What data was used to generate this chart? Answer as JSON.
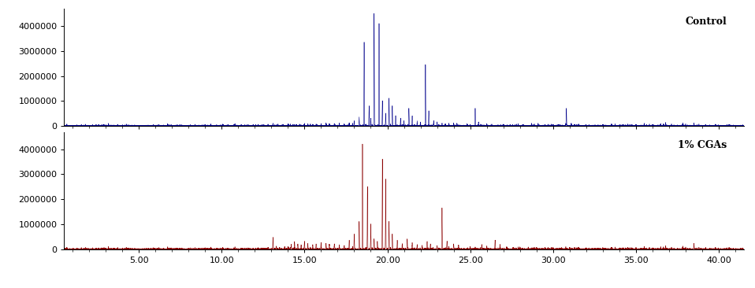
{
  "title_top": "Control",
  "title_bottom": "1% CGAs",
  "color_top": "#00008B",
  "color_bottom": "#8B0000",
  "xlim": [
    0.5,
    41.5
  ],
  "ylim": [
    0,
    4700000
  ],
  "yticks": [
    0,
    1000000,
    2000000,
    3000000,
    4000000
  ],
  "xticks": [
    5.0,
    10.0,
    15.0,
    20.0,
    25.0,
    30.0,
    35.0,
    40.0
  ],
  "background": "#ffffff",
  "figsize": [
    9.58,
    3.66
  ],
  "dpi": 100,
  "peaks_top": [
    [
      3.5,
      20000
    ],
    [
      4.5,
      15000
    ],
    [
      6.2,
      25000
    ],
    [
      6.8,
      30000
    ],
    [
      7.5,
      35000
    ],
    [
      8.0,
      20000
    ],
    [
      8.4,
      25000
    ],
    [
      9.0,
      40000
    ],
    [
      9.3,
      25000
    ],
    [
      9.7,
      30000
    ],
    [
      10.1,
      35000
    ],
    [
      10.4,
      25000
    ],
    [
      10.8,
      40000
    ],
    [
      11.2,
      30000
    ],
    [
      11.6,
      45000
    ],
    [
      11.9,
      35000
    ],
    [
      12.2,
      55000
    ],
    [
      12.5,
      40000
    ],
    [
      12.8,
      60000
    ],
    [
      13.1,
      80000
    ],
    [
      13.4,
      60000
    ],
    [
      13.7,
      50000
    ],
    [
      14.0,
      75000
    ],
    [
      14.3,
      55000
    ],
    [
      14.5,
      45000
    ],
    [
      14.7,
      60000
    ],
    [
      15.0,
      90000
    ],
    [
      15.2,
      70000
    ],
    [
      15.5,
      55000
    ],
    [
      15.7,
      65000
    ],
    [
      16.0,
      80000
    ],
    [
      16.3,
      100000
    ],
    [
      16.5,
      70000
    ],
    [
      16.8,
      85000
    ],
    [
      17.1,
      95000
    ],
    [
      17.4,
      75000
    ],
    [
      17.7,
      110000
    ],
    [
      18.0,
      200000
    ],
    [
      18.3,
      350000
    ],
    [
      18.6,
      3350000
    ],
    [
      18.9,
      800000
    ],
    [
      19.0,
      300000
    ],
    [
      19.2,
      4500000
    ],
    [
      19.5,
      4100000
    ],
    [
      19.7,
      1000000
    ],
    [
      19.9,
      500000
    ],
    [
      20.1,
      1100000
    ],
    [
      20.3,
      800000
    ],
    [
      20.5,
      400000
    ],
    [
      20.8,
      300000
    ],
    [
      21.0,
      200000
    ],
    [
      21.3,
      700000
    ],
    [
      21.5,
      400000
    ],
    [
      21.8,
      200000
    ],
    [
      22.0,
      150000
    ],
    [
      22.3,
      2450000
    ],
    [
      22.5,
      600000
    ],
    [
      22.8,
      200000
    ],
    [
      23.0,
      150000
    ],
    [
      23.3,
      100000
    ],
    [
      23.5,
      80000
    ],
    [
      24.0,
      100000
    ],
    [
      24.2,
      80000
    ],
    [
      24.8,
      60000
    ],
    [
      25.0,
      50000
    ],
    [
      25.3,
      700000
    ],
    [
      25.5,
      150000
    ],
    [
      26.0,
      80000
    ],
    [
      26.3,
      60000
    ],
    [
      27.0,
      55000
    ],
    [
      27.4,
      45000
    ],
    [
      27.8,
      55000
    ],
    [
      28.2,
      45000
    ],
    [
      28.7,
      55000
    ],
    [
      29.1,
      60000
    ],
    [
      29.5,
      50000
    ],
    [
      30.0,
      45000
    ],
    [
      30.3,
      40000
    ],
    [
      30.8,
      700000
    ],
    [
      31.1,
      100000
    ],
    [
      31.5,
      50000
    ],
    [
      32.0,
      45000
    ],
    [
      33.0,
      50000
    ],
    [
      33.5,
      40000
    ],
    [
      34.5,
      60000
    ],
    [
      35.0,
      50000
    ],
    [
      36.0,
      45000
    ],
    [
      36.8,
      55000
    ],
    [
      38.5,
      80000
    ],
    [
      39.2,
      50000
    ],
    [
      39.8,
      55000
    ],
    [
      40.5,
      45000
    ]
  ],
  "peaks_bottom": [
    [
      3.5,
      15000
    ],
    [
      4.5,
      12000
    ],
    [
      6.2,
      20000
    ],
    [
      6.8,
      25000
    ],
    [
      7.5,
      30000
    ],
    [
      8.0,
      18000
    ],
    [
      8.4,
      22000
    ],
    [
      9.0,
      35000
    ],
    [
      9.3,
      20000
    ],
    [
      9.7,
      28000
    ],
    [
      10.1,
      30000
    ],
    [
      10.4,
      22000
    ],
    [
      10.8,
      35000
    ],
    [
      11.2,
      28000
    ],
    [
      11.6,
      40000
    ],
    [
      11.9,
      30000
    ],
    [
      12.2,
      50000
    ],
    [
      12.5,
      35000
    ],
    [
      12.8,
      55000
    ],
    [
      13.1,
      450000
    ],
    [
      13.3,
      100000
    ],
    [
      13.5,
      60000
    ],
    [
      13.8,
      80000
    ],
    [
      14.0,
      100000
    ],
    [
      14.2,
      180000
    ],
    [
      14.4,
      280000
    ],
    [
      14.6,
      200000
    ],
    [
      14.8,
      150000
    ],
    [
      15.0,
      300000
    ],
    [
      15.2,
      220000
    ],
    [
      15.5,
      170000
    ],
    [
      15.7,
      200000
    ],
    [
      16.0,
      250000
    ],
    [
      16.3,
      220000
    ],
    [
      16.5,
      180000
    ],
    [
      16.8,
      200000
    ],
    [
      17.1,
      160000
    ],
    [
      17.4,
      140000
    ],
    [
      17.7,
      350000
    ],
    [
      18.0,
      600000
    ],
    [
      18.3,
      1100000
    ],
    [
      18.5,
      4200000
    ],
    [
      18.8,
      2500000
    ],
    [
      19.0,
      1000000
    ],
    [
      19.2,
      400000
    ],
    [
      19.4,
      300000
    ],
    [
      19.7,
      3600000
    ],
    [
      19.9,
      2800000
    ],
    [
      20.1,
      1100000
    ],
    [
      20.3,
      600000
    ],
    [
      20.6,
      350000
    ],
    [
      20.9,
      200000
    ],
    [
      21.2,
      400000
    ],
    [
      21.5,
      250000
    ],
    [
      21.8,
      180000
    ],
    [
      22.1,
      130000
    ],
    [
      22.4,
      300000
    ],
    [
      22.6,
      200000
    ],
    [
      23.0,
      130000
    ],
    [
      23.3,
      1650000
    ],
    [
      23.6,
      300000
    ],
    [
      24.0,
      200000
    ],
    [
      24.3,
      150000
    ],
    [
      25.0,
      100000
    ],
    [
      25.3,
      80000
    ],
    [
      25.7,
      180000
    ],
    [
      26.0,
      120000
    ],
    [
      26.5,
      350000
    ],
    [
      26.8,
      180000
    ],
    [
      27.2,
      80000
    ],
    [
      27.6,
      65000
    ],
    [
      28.0,
      75000
    ],
    [
      28.5,
      60000
    ],
    [
      29.0,
      65000
    ],
    [
      29.5,
      55000
    ],
    [
      30.0,
      50000
    ],
    [
      30.5,
      45000
    ],
    [
      31.0,
      55000
    ],
    [
      31.5,
      65000
    ],
    [
      32.0,
      50000
    ],
    [
      33.0,
      50000
    ],
    [
      33.5,
      35000
    ],
    [
      34.5,
      60000
    ],
    [
      35.0,
      50000
    ],
    [
      36.0,
      40000
    ],
    [
      36.8,
      50000
    ],
    [
      38.5,
      200000
    ],
    [
      39.2,
      45000
    ],
    [
      39.8,
      50000
    ],
    [
      40.5,
      40000
    ]
  ]
}
